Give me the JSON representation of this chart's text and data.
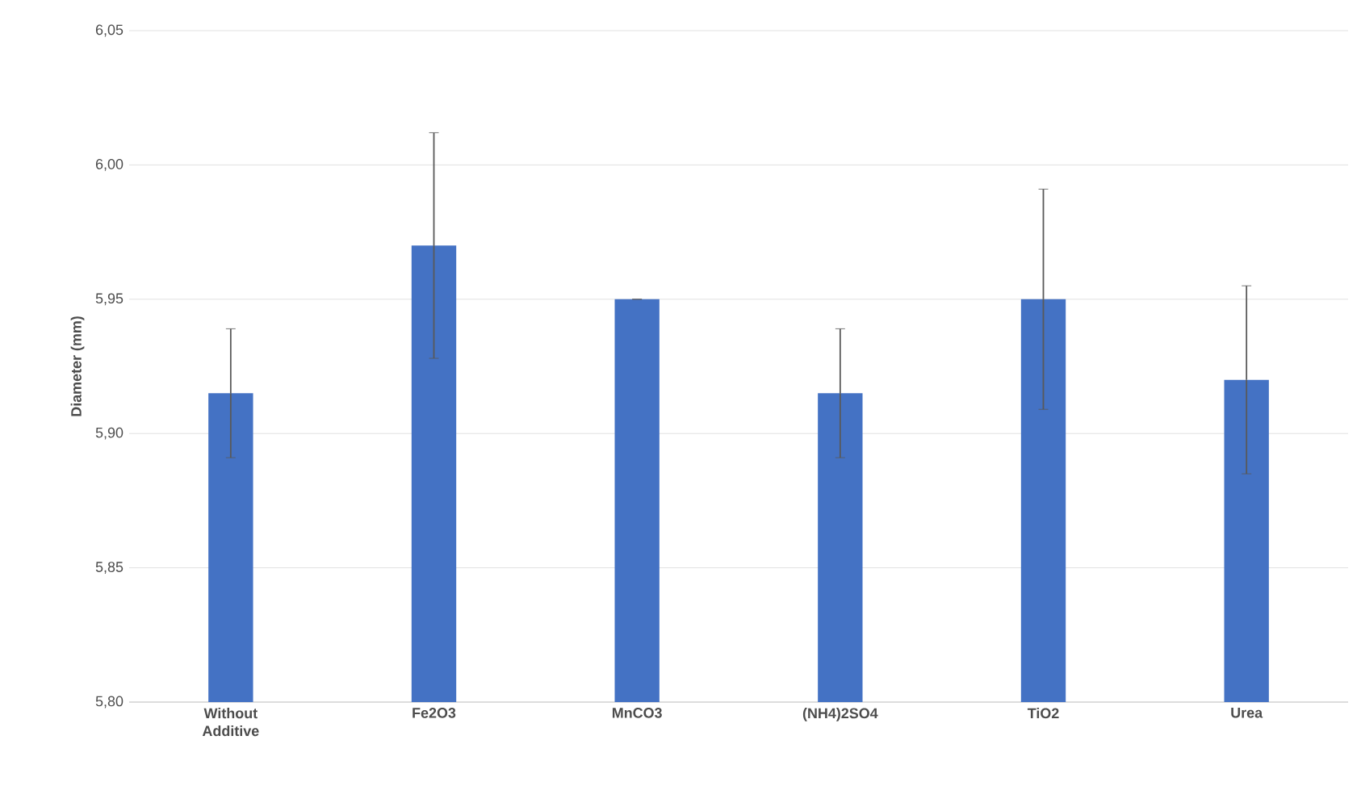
{
  "chart_data": {
    "type": "bar",
    "ylabel": "Diameter (mm)",
    "categories": [
      "Without Additive",
      "Fe2O3",
      "MnCO3",
      "(NH4)2SO4",
      "TiO2",
      "Urea"
    ],
    "values": [
      5.915,
      5.97,
      5.95,
      5.915,
      5.95,
      5.92
    ],
    "errors": [
      0.024,
      0.042,
      0,
      0.024,
      0.041,
      0.035
    ],
    "color": "#4472c4",
    "ylim": [
      5.8,
      6.05
    ],
    "yticks": [
      {
        "value": 5.8,
        "label": "5,80"
      },
      {
        "value": 5.85,
        "label": "5,85"
      },
      {
        "value": 5.9,
        "label": "5,90"
      },
      {
        "value": 5.95,
        "label": "5,95"
      },
      {
        "value": 6.0,
        "label": "6,00"
      },
      {
        "value": 6.05,
        "label": "6,05"
      }
    ],
    "grid": "y"
  }
}
